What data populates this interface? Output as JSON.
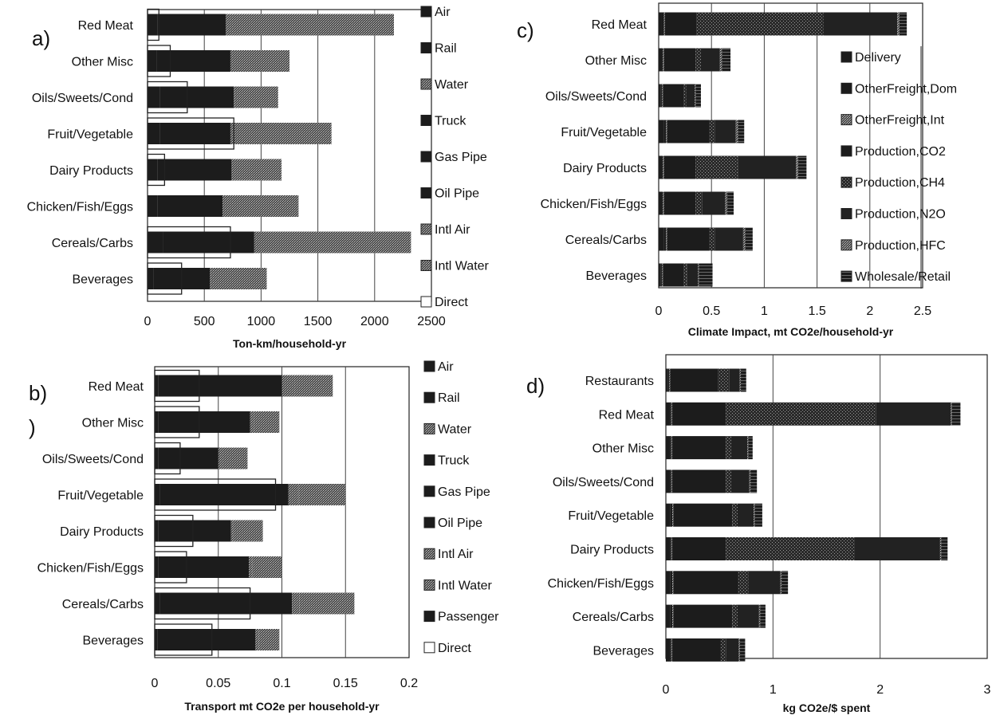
{
  "chart_data": [
    {
      "panel_label": "a)",
      "type": "bar",
      "stacked": true,
      "orientation": "horizontal",
      "categories": [
        "Red Meat",
        "Other Misc",
        "Oils/Sweets/Cond",
        "Fruit/Vegetable",
        "Dairy Products",
        "Chicken/Fish/Eggs",
        "Cereals/Carbs",
        "Beverages"
      ],
      "series": [
        {
          "name": "Air",
          "values": [
            0,
            0,
            0,
            0,
            0,
            0,
            0,
            0
          ]
        },
        {
          "name": "Rail",
          "values": [
            90,
            80,
            110,
            110,
            90,
            90,
            140,
            50
          ]
        },
        {
          "name": "Water",
          "values": [
            0,
            0,
            0,
            0,
            0,
            0,
            0,
            0
          ]
        },
        {
          "name": "Truck",
          "values": [
            600,
            650,
            650,
            620,
            650,
            570,
            800,
            500
          ]
        },
        {
          "name": "Gas Pipe",
          "values": [
            0,
            0,
            0,
            0,
            0,
            0,
            0,
            0
          ]
        },
        {
          "name": "Oil Pipe",
          "values": [
            0,
            0,
            0,
            0,
            0,
            0,
            0,
            0
          ]
        },
        {
          "name": "Intl Air",
          "values": [
            0,
            0,
            0,
            0,
            0,
            0,
            0,
            0
          ]
        },
        {
          "name": "Intl Water",
          "values": [
            1480,
            520,
            390,
            890,
            440,
            670,
            1380,
            500
          ]
        }
      ],
      "direct": [
        100,
        200,
        350,
        760,
        150,
        0,
        730,
        300
      ],
      "xlabel": "Ton-km/household-yr",
      "xlim": [
        0,
        2500
      ],
      "xticks": [
        0,
        500,
        1000,
        1500,
        2000,
        2500
      ],
      "grid": "vertical",
      "legend": [
        "Air",
        "Rail",
        "Water",
        "Truck",
        "Gas Pipe",
        "Oil Pipe",
        "Intl Air",
        "Intl Water",
        "Direct"
      ],
      "legend_position": "right"
    },
    {
      "panel_label": ")",
      "panel_label_main": "b)",
      "type": "bar",
      "stacked": true,
      "orientation": "horizontal",
      "categories": [
        "Red Meat",
        "Other Misc",
        "Oils/Sweets/Cond",
        "Fruit/Vegetable",
        "Dairy Products",
        "Chicken/Fish/Eggs",
        "Cereals/Carbs",
        "Beverages"
      ],
      "series": [
        {
          "name": "Air",
          "values": [
            0,
            0,
            0,
            0,
            0,
            0,
            0,
            0
          ]
        },
        {
          "name": "Rail",
          "values": [
            0.003,
            0.003,
            0.003,
            0.004,
            0.003,
            0.003,
            0.004,
            0.002
          ]
        },
        {
          "name": "Water",
          "values": [
            0,
            0,
            0,
            0,
            0,
            0,
            0,
            0
          ]
        },
        {
          "name": "Truck",
          "values": [
            0.097,
            0.072,
            0.047,
            0.101,
            0.057,
            0.071,
            0.104,
            0.077
          ]
        },
        {
          "name": "Gas Pipe",
          "values": [
            0,
            0,
            0,
            0,
            0,
            0,
            0,
            0
          ]
        },
        {
          "name": "Oil Pipe",
          "values": [
            0,
            0,
            0,
            0,
            0,
            0,
            0,
            0
          ]
        },
        {
          "name": "Intl Air",
          "values": [
            0.01,
            0.003,
            0.003,
            0.008,
            0.002,
            0.003,
            0.006,
            0.003
          ]
        },
        {
          "name": "Intl Water",
          "values": [
            0.03,
            0.02,
            0.02,
            0.037,
            0.023,
            0.023,
            0.043,
            0.016
          ]
        },
        {
          "name": "Passenger",
          "values": [
            0,
            0,
            0,
            0,
            0,
            0,
            0,
            0
          ]
        }
      ],
      "direct": [
        0.035,
        0.035,
        0.02,
        0.095,
        0.03,
        0.025,
        0.075,
        0.045
      ],
      "xlabel": "Transport mt CO2e per household-yr",
      "xlim": [
        0,
        0.2
      ],
      "xticks": [
        0,
        0.05,
        0.1,
        0.15,
        0.2
      ],
      "xtick_labels": [
        "0",
        "0.05",
        "0.1",
        "0.15",
        "0.2"
      ],
      "grid": "vertical",
      "legend": [
        "Air",
        "Rail",
        "Water",
        "Truck",
        "Gas Pipe",
        "Oil Pipe",
        "Intl Air",
        "Intl Water",
        "Passenger",
        "Direct"
      ],
      "legend_position": "right"
    },
    {
      "panel_label": "c)",
      "type": "bar",
      "stacked": true,
      "orientation": "horizontal",
      "categories": [
        "Red Meat",
        "Other Misc",
        "Oils/Sweets/Cond",
        "Fruit/Vegetable",
        "Dairy Products",
        "Chicken/Fish/Eggs",
        "Cereals/Carbs",
        "Beverages"
      ],
      "series": [
        {
          "name": "Delivery",
          "values": [
            0.03,
            0.03,
            0.02,
            0.05,
            0.03,
            0.03,
            0.05,
            0.02
          ]
        },
        {
          "name": "OtherFreight,Dom",
          "values": [
            0.02,
            0.01,
            0.01,
            0.02,
            0.01,
            0.01,
            0.02,
            0.01
          ]
        },
        {
          "name": "OtherFreight,Int",
          "values": [
            0.01,
            0.01,
            0.01,
            0.01,
            0.01,
            0.01,
            0.01,
            0.01
          ]
        },
        {
          "name": "Production,CO2",
          "values": [
            0.3,
            0.3,
            0.2,
            0.4,
            0.3,
            0.3,
            0.4,
            0.2
          ]
        },
        {
          "name": "Production,CH4",
          "values": [
            1.2,
            0.05,
            0.02,
            0.05,
            0.4,
            0.06,
            0.05,
            0.03
          ]
        },
        {
          "name": "Production,N2O",
          "values": [
            0.7,
            0.18,
            0.08,
            0.2,
            0.55,
            0.22,
            0.27,
            0.1
          ]
        },
        {
          "name": "Production,HFC",
          "values": [
            0.02,
            0.02,
            0.01,
            0.02,
            0.02,
            0.02,
            0.02,
            0.01
          ]
        },
        {
          "name": "Wholesale/Retail",
          "values": [
            0.07,
            0.08,
            0.05,
            0.06,
            0.08,
            0.06,
            0.07,
            0.13
          ]
        }
      ],
      "xlabel": "Climate Impact, mt CO2e/household-yr",
      "xlim": [
        0,
        2.5
      ],
      "xticks": [
        0,
        0.5,
        1,
        1.5,
        2,
        2.5
      ],
      "xtick_labels": [
        "0",
        "0.5",
        "1",
        "1.5",
        "2",
        "2.5"
      ],
      "grid": "vertical",
      "legend": [
        "Delivery",
        "OtherFreight,Dom",
        "OtherFreight,Int",
        "Production,CO2",
        "Production,CH4",
        "Production,N2O",
        "Production,HFC",
        "Wholesale/Retail"
      ],
      "legend_position": "right"
    },
    {
      "panel_label": "d)",
      "type": "bar",
      "stacked": true,
      "orientation": "horizontal",
      "categories": [
        "Restaurants",
        "Red Meat",
        "Other Misc",
        "Oils/Sweets/Cond",
        "Fruit/Vegetable",
        "Dairy Products",
        "Chicken/Fish/Eggs",
        "Cereals/Carbs",
        "Beverages"
      ],
      "series": [
        {
          "name": "Delivery",
          "values": [
            0.02,
            0.03,
            0.03,
            0.03,
            0.04,
            0.03,
            0.04,
            0.04,
            0.03
          ]
        },
        {
          "name": "OtherFreight,Dom",
          "values": [
            0.01,
            0.02,
            0.02,
            0.02,
            0.02,
            0.02,
            0.02,
            0.02,
            0.02
          ]
        },
        {
          "name": "OtherFreight,Int",
          "values": [
            0.01,
            0.01,
            0.01,
            0.01,
            0.01,
            0.01,
            0.01,
            0.01,
            0.01
          ]
        },
        {
          "name": "Production,CO2",
          "values": [
            0.45,
            0.5,
            0.5,
            0.5,
            0.55,
            0.5,
            0.6,
            0.55,
            0.45
          ]
        },
        {
          "name": "Production,CH4",
          "values": [
            0.1,
            1.4,
            0.05,
            0.05,
            0.05,
            1.2,
            0.1,
            0.05,
            0.05
          ]
        },
        {
          "name": "Production,N2O",
          "values": [
            0.1,
            0.7,
            0.15,
            0.17,
            0.15,
            0.8,
            0.3,
            0.2,
            0.12
          ]
        },
        {
          "name": "Production,HFC",
          "values": [
            0.01,
            0.01,
            0.01,
            0.01,
            0.01,
            0.01,
            0.01,
            0.01,
            0.01
          ]
        },
        {
          "name": "Wholesale/Retail",
          "values": [
            0.05,
            0.08,
            0.04,
            0.06,
            0.07,
            0.06,
            0.06,
            0.05,
            0.05
          ]
        }
      ],
      "xlabel": "kg CO2e/$ spent",
      "xlim": [
        0,
        3
      ],
      "xticks": [
        0,
        1,
        2,
        3
      ],
      "grid": "vertical"
    }
  ]
}
